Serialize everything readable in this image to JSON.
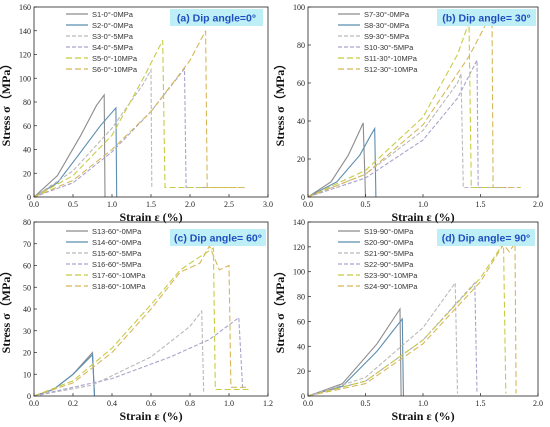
{
  "chart_data": [
    {
      "type": "line",
      "panel_label": "(a) Dip angle=0°",
      "xlabel": "Strain ε (%)",
      "ylabel": "Stress σ（MPa）",
      "xlim": [
        0,
        3.0
      ],
      "ylim": [
        0,
        160
      ],
      "xticks": [
        "0.0",
        "0.5",
        "1.0",
        "1.5",
        "2.0",
        "2.5",
        "3.0"
      ],
      "yticks": [
        "0",
        "20",
        "40",
        "60",
        "80",
        "100",
        "120",
        "140",
        "160"
      ],
      "series": [
        {
          "name": "S1-0°-0MPa",
          "color": "#8c8c8c",
          "dash": "",
          "x": [
            0,
            0.3,
            0.6,
            0.8,
            0.9,
            0.91
          ],
          "y": [
            0,
            18,
            52,
            77,
            86,
            0
          ]
        },
        {
          "name": "S2-0°-0MPa",
          "color": "#5b8db0",
          "dash": "",
          "x": [
            0,
            0.3,
            0.6,
            0.85,
            1.05,
            1.06
          ],
          "y": [
            0,
            12,
            38,
            60,
            75,
            0
          ]
        },
        {
          "name": "S3-0°-5MPa",
          "color": "#b9b9b9",
          "dash": "4,2",
          "x": [
            0,
            0.5,
            1.0,
            1.4,
            1.5,
            1.51
          ],
          "y": [
            0,
            22,
            58,
            95,
            107,
            8
          ]
        },
        {
          "name": "S4-0°-5MPa",
          "color": "#a9a3cc",
          "dash": "4,2",
          "x": [
            0,
            0.5,
            1.0,
            1.5,
            1.93,
            1.95,
            2.7
          ],
          "y": [
            0,
            12,
            38,
            72,
            108,
            8,
            8
          ]
        },
        {
          "name": "S5-0°-10MPa",
          "color": "#c8cc45",
          "dash": "6,3",
          "x": [
            0,
            0.5,
            1.0,
            1.4,
            1.65,
            1.68,
            2.6
          ],
          "y": [
            0,
            18,
            52,
            100,
            132,
            8,
            8
          ]
        },
        {
          "name": "S6-0°-10MPa",
          "color": "#d6b85a",
          "dash": "6,3",
          "x": [
            0,
            0.5,
            1.0,
            1.5,
            2.0,
            2.2,
            2.22,
            2.7
          ],
          "y": [
            0,
            14,
            40,
            72,
            115,
            140,
            8,
            8
          ]
        }
      ]
    },
    {
      "type": "line",
      "panel_label": "(b) Dip angle= 30°",
      "xlabel": "Strain ε (%)",
      "ylabel": "Stress σ（MPa）",
      "xlim": [
        0,
        2.0
      ],
      "ylim": [
        0,
        100
      ],
      "xticks": [
        "0.0",
        "0.5",
        "1.0",
        "1.5",
        "2.0"
      ],
      "yticks": [
        "0",
        "20",
        "40",
        "60",
        "80",
        "100"
      ],
      "series": [
        {
          "name": "S7-30°-0MPa",
          "color": "#8c8c8c",
          "dash": "",
          "x": [
            0,
            0.2,
            0.35,
            0.45,
            0.48,
            0.5
          ],
          "y": [
            0,
            8,
            22,
            35,
            39,
            0
          ]
        },
        {
          "name": "S8-30°-0MPa",
          "color": "#5b8db0",
          "dash": "",
          "x": [
            0,
            0.25,
            0.45,
            0.55,
            0.58,
            0.59
          ],
          "y": [
            0,
            8,
            22,
            33,
            36,
            0
          ]
        },
        {
          "name": "S9-30°-5MPa",
          "color": "#b9b9b9",
          "dash": "4,2",
          "x": [
            0,
            0.5,
            1.0,
            1.3,
            1.33,
            1.35,
            1.6
          ],
          "y": [
            0,
            12,
            35,
            60,
            65,
            5,
            5
          ]
        },
        {
          "name": "S10-30°-5MPa",
          "color": "#a9a3cc",
          "dash": "4,2",
          "x": [
            0,
            0.5,
            1.0,
            1.3,
            1.47,
            1.48,
            1.8
          ],
          "y": [
            0,
            10,
            30,
            52,
            72,
            5,
            5
          ]
        },
        {
          "name": "S11-30°-10MPa",
          "color": "#c8cc45",
          "dash": "6,3",
          "x": [
            0,
            0.5,
            1.0,
            1.3,
            1.4,
            1.42,
            1.7
          ],
          "y": [
            0,
            14,
            42,
            75,
            92,
            5,
            5
          ]
        },
        {
          "name": "S12-30°-10MPa",
          "color": "#d6b85a",
          "dash": "6,3",
          "x": [
            0,
            0.5,
            1.0,
            1.4,
            1.6,
            1.61,
            1.85
          ],
          "y": [
            0,
            12,
            38,
            74,
            97,
            5,
            5
          ]
        }
      ]
    },
    {
      "type": "line",
      "panel_label": "(c) Dip angle= 60°",
      "xlabel": "Strain ε (%)",
      "ylabel": "Stress σ（MPa）",
      "xlim": [
        0,
        1.2
      ],
      "ylim": [
        0,
        80
      ],
      "xticks": [
        "0.0",
        "0.2",
        "0.4",
        "0.6",
        "0.8",
        "1.0",
        "1.2"
      ],
      "yticks": [
        "0",
        "10",
        "20",
        "30",
        "40",
        "50",
        "60",
        "70",
        "80"
      ],
      "series": [
        {
          "name": "S13-60°-0MPa",
          "color": "#8c8c8c",
          "dash": "",
          "x": [
            0,
            0.1,
            0.2,
            0.3,
            0.31
          ],
          "y": [
            0,
            3,
            10,
            20,
            0
          ]
        },
        {
          "name": "S14-60°-0MPa",
          "color": "#5b8db0",
          "dash": "",
          "x": [
            0,
            0.1,
            0.2,
            0.3,
            0.31
          ],
          "y": [
            0,
            3,
            10,
            19,
            0
          ]
        },
        {
          "name": "S15-60°-5MPa",
          "color": "#b9b9b9",
          "dash": "4,2",
          "x": [
            0,
            0.3,
            0.6,
            0.8,
            0.86,
            0.87
          ],
          "y": [
            0,
            5,
            18,
            32,
            39,
            2
          ]
        },
        {
          "name": "S16-60°-5MPa",
          "color": "#a9a3cc",
          "dash": "4,2",
          "x": [
            0,
            0.4,
            0.7,
            0.9,
            1.05,
            1.07,
            1.1
          ],
          "y": [
            0,
            8,
            18,
            26,
            36,
            3,
            3
          ]
        },
        {
          "name": "S17-60°-10MPa",
          "color": "#c8cc45",
          "dash": "6,3",
          "x": [
            0,
            0.2,
            0.4,
            0.6,
            0.75,
            0.85,
            0.92,
            0.93,
            1.1
          ],
          "y": [
            0,
            7,
            22,
            42,
            58,
            64,
            68,
            3,
            3
          ]
        },
        {
          "name": "S18-60°-10MPa",
          "color": "#d6b85a",
          "dash": "6,3",
          "x": [
            0,
            0.2,
            0.4,
            0.6,
            0.75,
            0.85,
            0.9,
            0.95,
            1.0,
            1.01,
            1.1
          ],
          "y": [
            0,
            6,
            20,
            40,
            57,
            61,
            69,
            58,
            60,
            4,
            4
          ]
        }
      ]
    },
    {
      "type": "line",
      "panel_label": "(d) Dip angle= 90°",
      "xlabel": "Strain ε (%)",
      "ylabel": "Stress σ（MPa）",
      "xlim": [
        0,
        2.0
      ],
      "ylim": [
        0,
        140
      ],
      "xticks": [
        "0.0",
        "0.5",
        "1.0",
        "1.5",
        "2.0"
      ],
      "yticks": [
        "0",
        "20",
        "40",
        "60",
        "80",
        "100",
        "120",
        "140"
      ],
      "series": [
        {
          "name": "S19-90°-0MPa",
          "color": "#8c8c8c",
          "dash": "",
          "x": [
            0,
            0.3,
            0.6,
            0.8,
            0.81
          ],
          "y": [
            0,
            10,
            42,
            70,
            0
          ]
        },
        {
          "name": "S20-90°-0MPa",
          "color": "#5b8db0",
          "dash": "",
          "x": [
            0,
            0.3,
            0.6,
            0.82,
            0.83
          ],
          "y": [
            0,
            8,
            36,
            62,
            0
          ]
        },
        {
          "name": "S21-90°-5MPa",
          "color": "#b9b9b9",
          "dash": "4,2",
          "x": [
            0,
            0.5,
            1.0,
            1.28,
            1.3
          ],
          "y": [
            0,
            15,
            55,
            91,
            2
          ]
        },
        {
          "name": "S22-90°-5MPa",
          "color": "#a9a3cc",
          "dash": "4,2",
          "x": [
            0,
            0.5,
            1.0,
            1.45,
            1.47
          ],
          "y": [
            0,
            12,
            45,
            91,
            2
          ]
        },
        {
          "name": "S23-90°-10MPa",
          "color": "#c8cc45",
          "dash": "6,3",
          "x": [
            0,
            0.5,
            1.0,
            1.5,
            1.7,
            1.72
          ],
          "y": [
            0,
            12,
            45,
            95,
            123,
            2
          ]
        },
        {
          "name": "S24-90°-10MPa",
          "color": "#d6b85a",
          "dash": "6,3",
          "x": [
            0,
            0.5,
            1.0,
            1.5,
            1.7,
            1.75,
            1.8,
            1.81
          ],
          "y": [
            0,
            10,
            42,
            92,
            122,
            116,
            123,
            2
          ]
        }
      ]
    }
  ]
}
